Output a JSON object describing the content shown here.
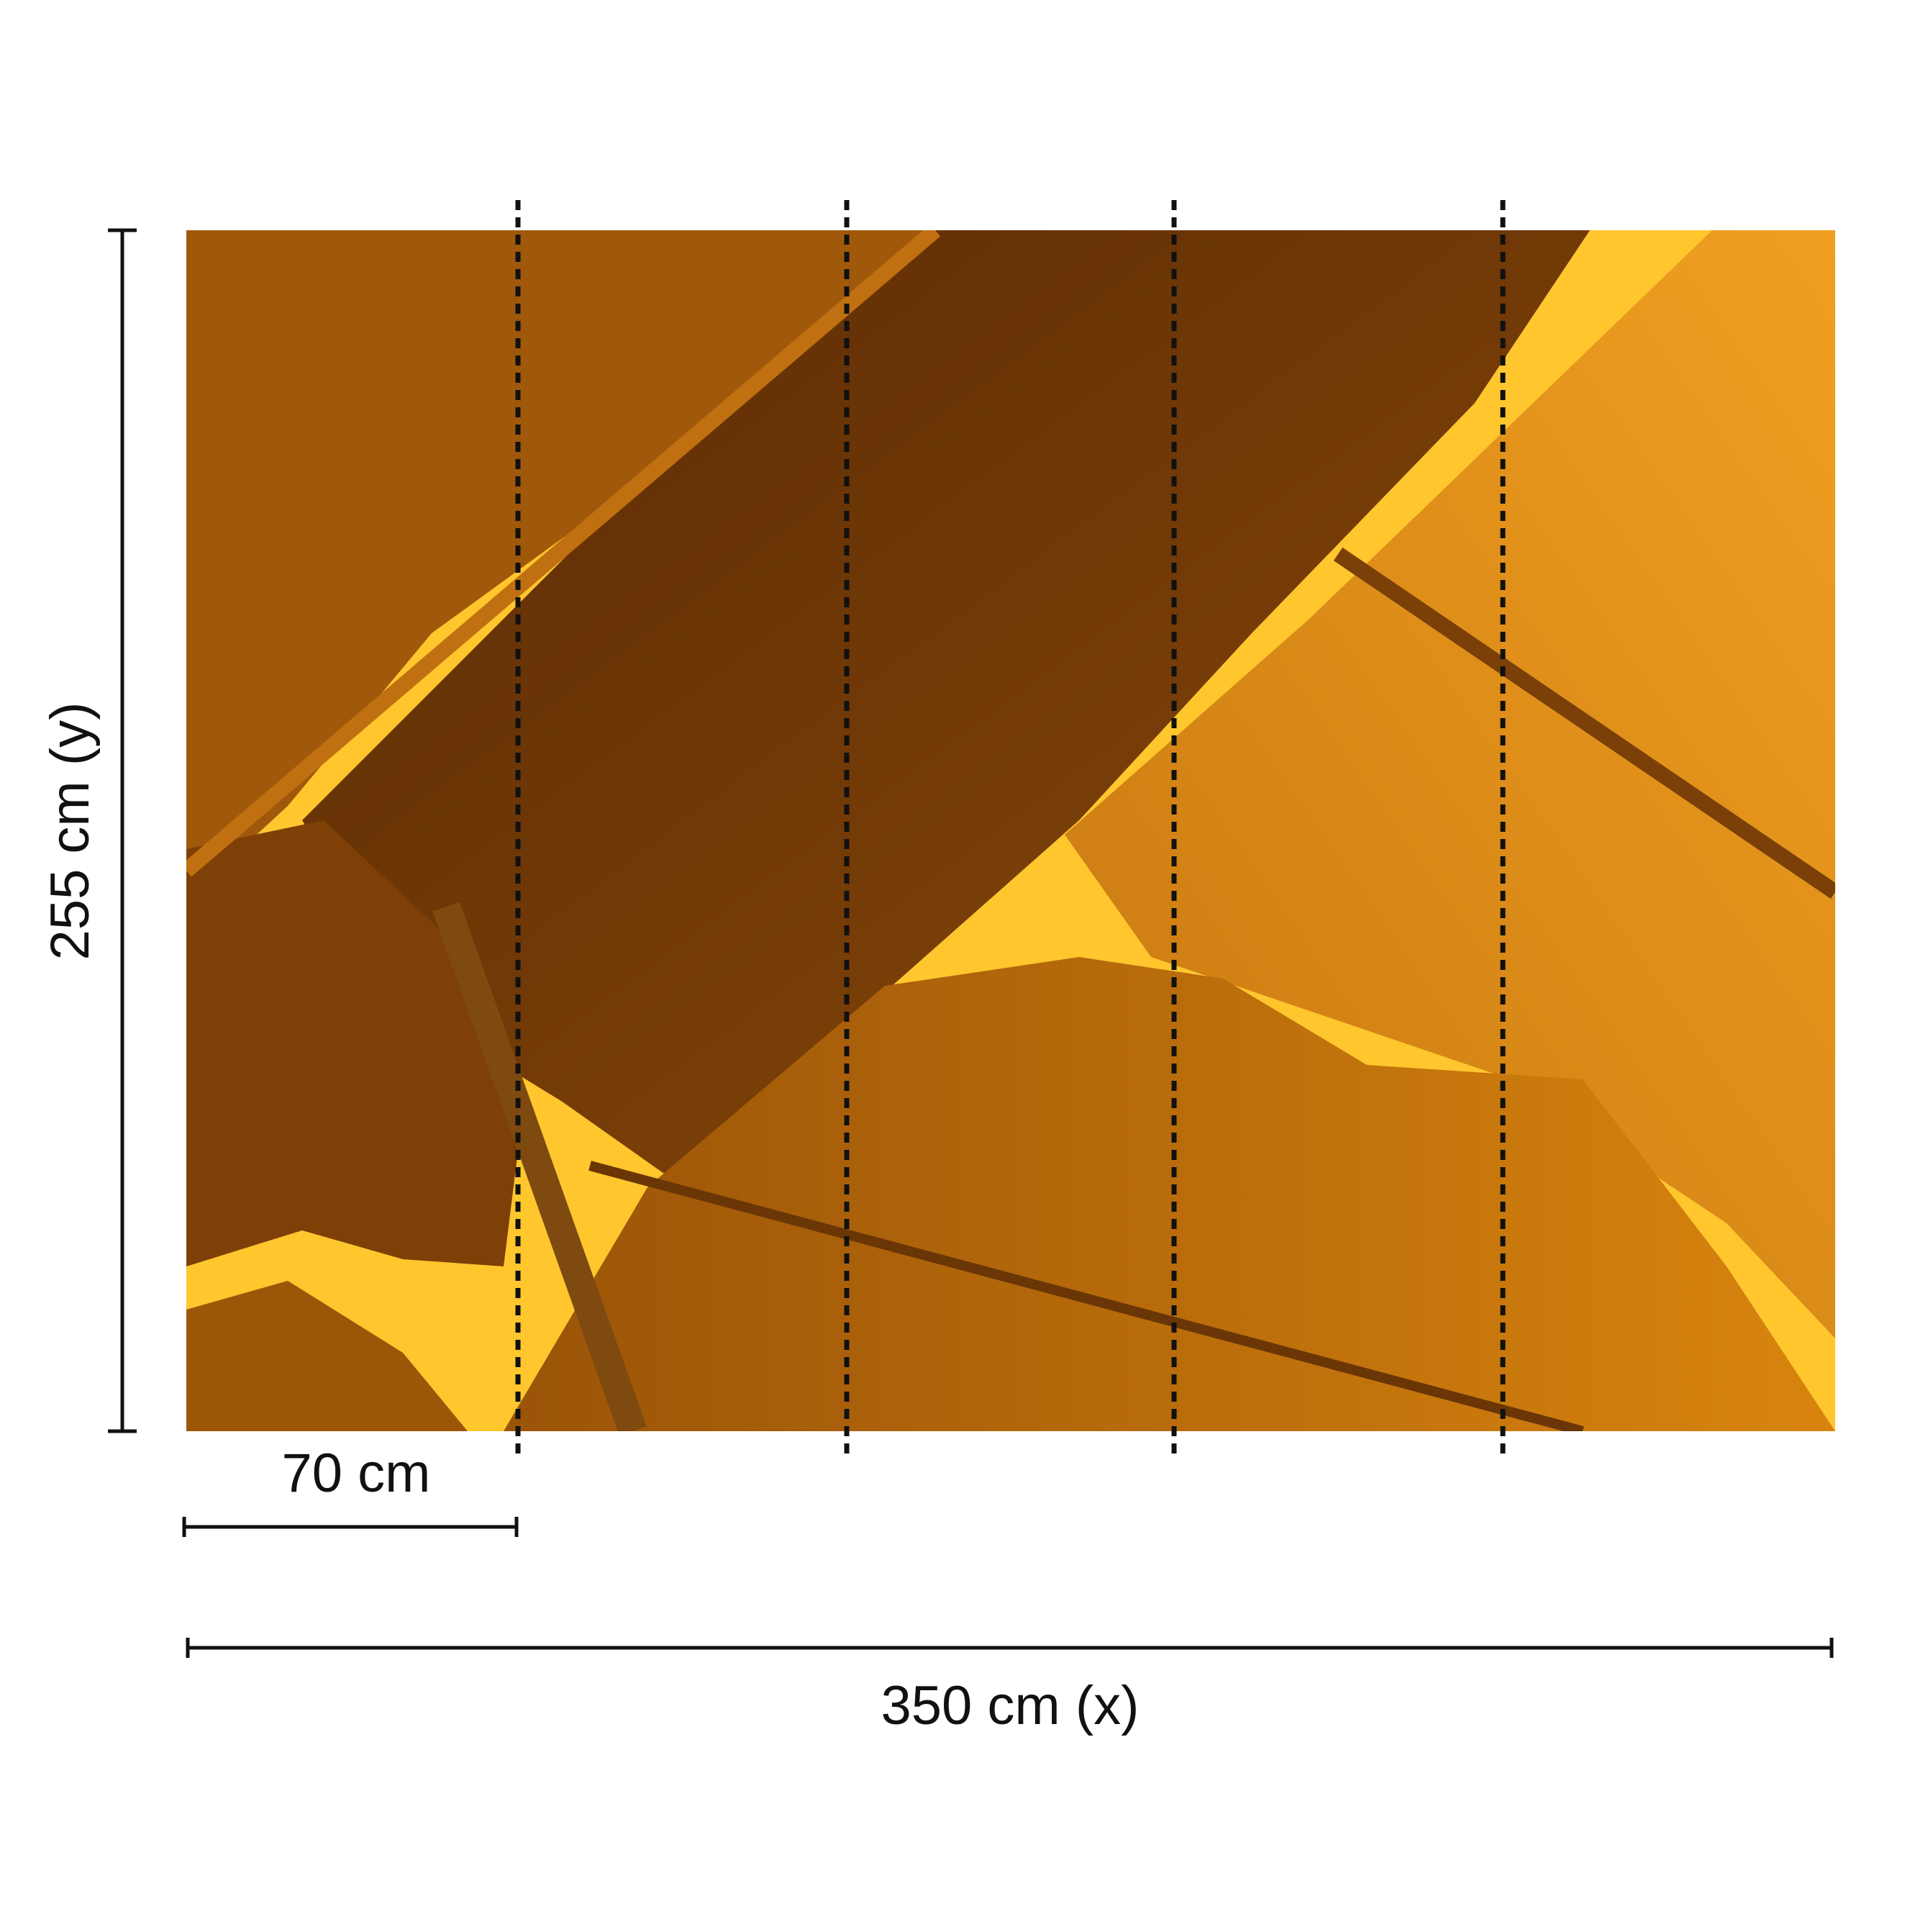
{
  "dimensions": {
    "height": "255 cm (y)",
    "panel_width": "70 cm",
    "width": "350 cm (x)"
  }
}
